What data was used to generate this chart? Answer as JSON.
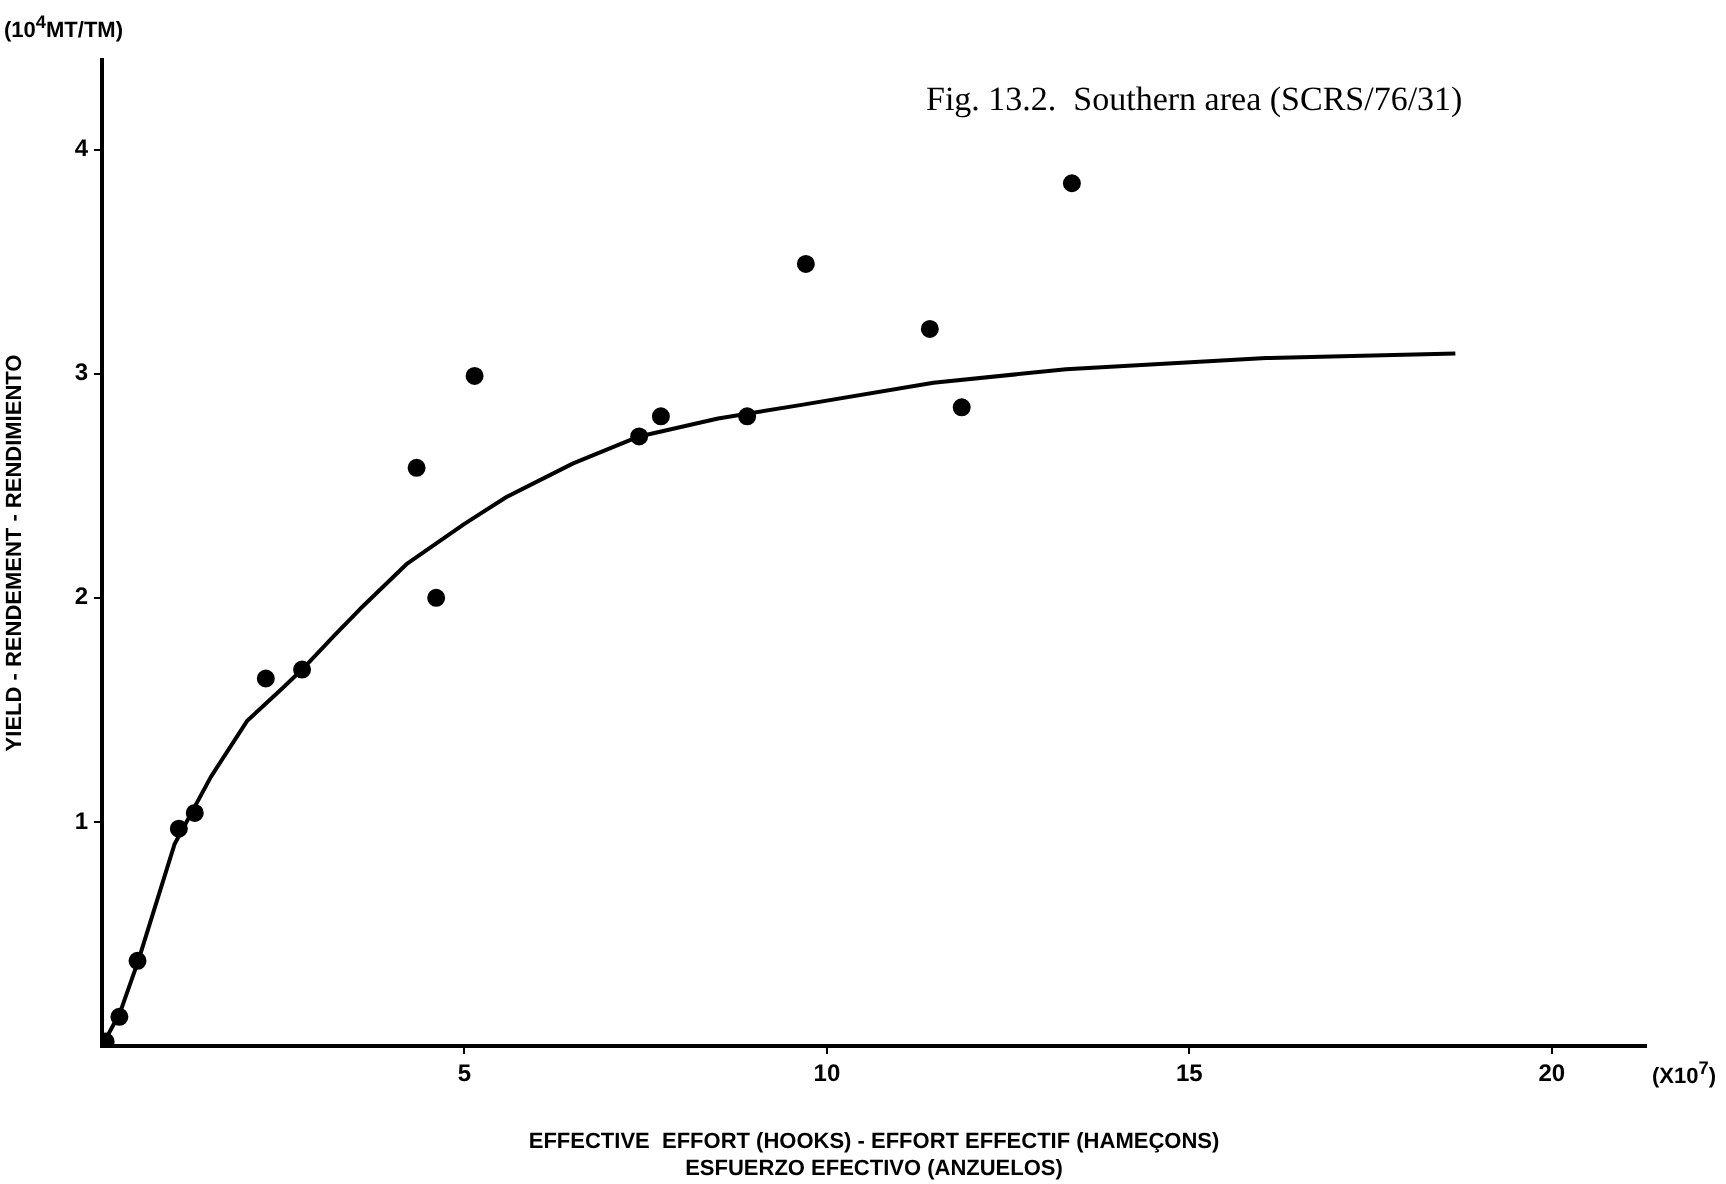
{
  "chart_data": {
    "type": "scatter",
    "title": "Fig. 13.2.  Southern area (SCRS/76/31)",
    "xlabel": "EFFECTIVE  EFFORT (HOOKS) - EFFORT EFFECTIF (HAMEÇONS)\nESFUERZO EFECTIVO (ANZUELOS)",
    "ylabel": "YIELD - RENDEMENT - RENDIMIENTO",
    "annotations": [
      "(10$^{4}$MT/TM)",
      "(X10$^{7}$)"
    ],
    "xlim": [
      0,
      21.3
    ],
    "xticks": [
      5,
      10,
      15,
      20
    ],
    "ylim": [
      0,
      4.4
    ],
    "yticks": [
      1,
      2,
      3,
      4
    ],
    "grid": false,
    "legend": false,
    "marker": "circle",
    "series": [
      {
        "color": "#000000",
        "x": [
          0.05,
          0.24,
          0.49,
          1.06,
          1.28,
          2.26,
          2.76,
          4.34,
          4.61,
          5.14,
          7.41,
          7.71,
          8.9,
          9.71,
          11.42,
          11.86,
          13.38
        ],
        "values": [
          0.02,
          0.13,
          0.38,
          0.97,
          1.04,
          1.64,
          1.68,
          2.58,
          2.0,
          2.99,
          2.72,
          2.81,
          2.81,
          3.49,
          3.2,
          2.85,
          3.85
        ]
      },
      {
        "type": "line",
        "color": "#000000",
        "marker": "none",
        "line_style": "solid",
        "x": [
          0,
          0.25,
          0.5,
          1,
          1.5,
          2,
          2.5,
          2.76,
          3.2,
          3.56,
          4.2,
          5,
          5.58,
          6.5,
          7.41,
          8.5,
          9.63,
          11.47,
          13.3,
          16.06,
          18.67
        ],
        "values": [
          0,
          0.15,
          0.38,
          0.9,
          1.2,
          1.45,
          1.6,
          1.68,
          1.83,
          1.95,
          2.15,
          2.33,
          2.45,
          2.6,
          2.72,
          2.8,
          2.86,
          2.96,
          3.02,
          3.07,
          3.09
        ]
      }
    ]
  }
}
